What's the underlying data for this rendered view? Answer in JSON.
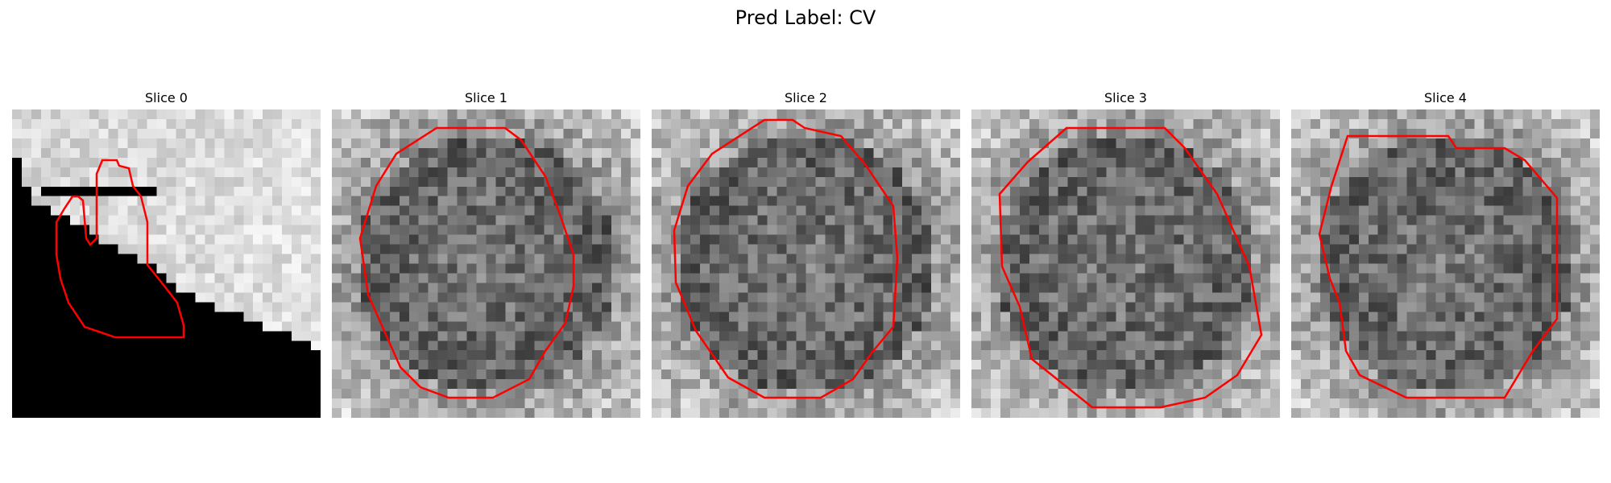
{
  "figure": {
    "title": "Pred Label: CV"
  },
  "contour_color": "#ff0000",
  "panels": [
    {
      "title": "Slice 0"
    },
    {
      "title": "Slice 1"
    },
    {
      "title": "Slice 2"
    },
    {
      "title": "Slice 3"
    },
    {
      "title": "Slice 4"
    }
  ]
}
